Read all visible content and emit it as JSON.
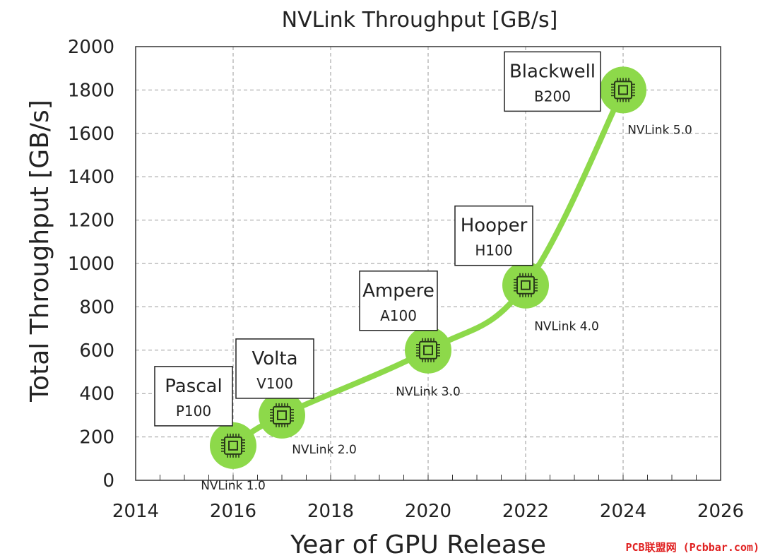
{
  "chart_data": {
    "type": "line",
    "title": "NVLink Throughput [GB/s]",
    "xlabel": "Year of GPU Release",
    "ylabel": "Total Throughput [GB/s]",
    "xlim": [
      2014,
      2026
    ],
    "ylim": [
      0,
      2000
    ],
    "xticks": [
      2014,
      2016,
      2018,
      2020,
      2022,
      2024,
      2026
    ],
    "yticks": [
      0,
      200,
      400,
      600,
      800,
      1000,
      1200,
      1400,
      1600,
      1800,
      2000
    ],
    "grid": true,
    "series": [
      {
        "color": "#8dd94a",
        "points": [
          {
            "x": 2016,
            "y": 160,
            "version": "NVLink 1.0",
            "architecture": "Pascal",
            "gpu": "P100"
          },
          {
            "x": 2017,
            "y": 300,
            "version": "NVLink 2.0",
            "architecture": "Volta",
            "gpu": "V100"
          },
          {
            "x": 2020,
            "y": 600,
            "version": "NVLink 3.0",
            "architecture": "Ampere",
            "gpu": "A100"
          },
          {
            "x": 2022,
            "y": 900,
            "version": "NVLink 4.0",
            "architecture": "Hooper",
            "gpu": "H100"
          },
          {
            "x": 2024,
            "y": 1800,
            "version": "NVLink 5.0",
            "architecture": "Blackwell",
            "gpu": "B200"
          }
        ]
      }
    ]
  },
  "watermark": "PCB联盟网 (Pcbbar.com)"
}
